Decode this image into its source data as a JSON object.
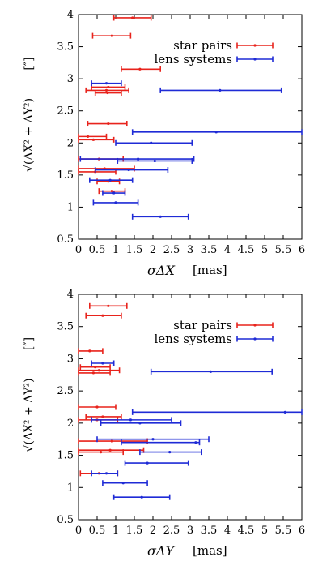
{
  "colors": {
    "star_pairs": "#e8231c",
    "lens_systems": "#1f2bd6",
    "axis": "#000000"
  },
  "chart_data": [
    {
      "type": "scatter",
      "error_bars": "horizontal",
      "x_tick_labels": [
        "0",
        "0.5",
        "1",
        "1.5",
        "2",
        "2.5",
        "3",
        "3.5",
        "4",
        "4.5",
        "5",
        "5.5",
        "6"
      ],
      "y_tick_labels": [
        "0.5",
        "1",
        "1.5",
        "2",
        "2.5",
        "3",
        "3.5",
        "4"
      ],
      "xlim": [
        0,
        6
      ],
      "ylim": [
        0.5,
        4
      ],
      "xlabel_symbol": "σΔX",
      "xlabel_unit": "[mas]",
      "ylabel_expr": "√(ΔX² + ΔY²)",
      "ylabel_unit": "[″]",
      "legend_position": "top-right",
      "series": [
        {
          "name": "star pairs",
          "color": "#e8231c",
          "points": [
            {
              "y": 3.95,
              "x": 1.45,
              "xlo": 0.95,
              "xhi": 1.95
            },
            {
              "y": 3.67,
              "x": 0.9,
              "xlo": 0.38,
              "xhi": 1.4
            },
            {
              "y": 3.15,
              "x": 1.65,
              "xlo": 1.15,
              "xhi": 2.2
            },
            {
              "y": 2.87,
              "x": 0.8,
              "xlo": 0.35,
              "xhi": 1.25
            },
            {
              "y": 2.82,
              "x": 0.75,
              "xlo": 0.2,
              "xhi": 1.35
            },
            {
              "y": 2.78,
              "x": 0.78,
              "xlo": 0.45,
              "xhi": 1.15
            },
            {
              "y": 2.3,
              "x": 0.8,
              "xlo": 0.25,
              "xhi": 1.3
            },
            {
              "y": 2.1,
              "x": 0.25,
              "xlo": 0.0,
              "xhi": 0.75
            },
            {
              "y": 2.05,
              "x": 0.4,
              "xlo": 0.0,
              "xhi": 0.95
            },
            {
              "y": 1.75,
              "x": 0.55,
              "xlo": 0.0,
              "xhi": 1.2
            },
            {
              "y": 1.6,
              "x": 0.7,
              "xlo": 0.0,
              "xhi": 1.5
            },
            {
              "y": 1.55,
              "x": 0.45,
              "xlo": 0.0,
              "xhi": 1.0
            },
            {
              "y": 1.4,
              "x": 0.8,
              "xlo": 0.5,
              "xhi": 1.1
            },
            {
              "y": 1.25,
              "x": 0.9,
              "xlo": 0.55,
              "xhi": 1.25
            }
          ]
        },
        {
          "name": "lens systems",
          "color": "#1f2bd6",
          "points": [
            {
              "y": 2.93,
              "x": 0.75,
              "xlo": 0.35,
              "xhi": 1.15
            },
            {
              "y": 2.82,
              "x": 3.8,
              "xlo": 2.2,
              "xhi": 5.45
            },
            {
              "y": 2.17,
              "x": 3.7,
              "xlo": 1.45,
              "xhi": 6.0
            },
            {
              "y": 2.0,
              "x": 1.95,
              "xlo": 1.0,
              "xhi": 3.05
            },
            {
              "y": 1.75,
              "x": 1.6,
              "xlo": 0.05,
              "xhi": 3.1
            },
            {
              "y": 1.72,
              "x": 2.05,
              "xlo": 1.05,
              "xhi": 3.05
            },
            {
              "y": 1.58,
              "x": 1.35,
              "xlo": 0.45,
              "xhi": 2.4
            },
            {
              "y": 1.42,
              "x": 0.85,
              "xlo": 0.3,
              "xhi": 1.45
            },
            {
              "y": 1.22,
              "x": 0.95,
              "xlo": 0.65,
              "xhi": 1.25
            },
            {
              "y": 1.07,
              "x": 1.0,
              "xlo": 0.4,
              "xhi": 1.6
            },
            {
              "y": 0.85,
              "x": 2.2,
              "xlo": 1.45,
              "xhi": 2.95
            }
          ]
        }
      ]
    },
    {
      "type": "scatter",
      "error_bars": "horizontal",
      "x_tick_labels": [
        "0",
        "0.5",
        "1",
        "1.5",
        "2",
        "2.5",
        "3",
        "3.5",
        "4",
        "4.5",
        "5",
        "5.5",
        "6"
      ],
      "y_tick_labels": [
        "0.5",
        "1",
        "1.5",
        "2",
        "2.5",
        "3",
        "3.5",
        "4"
      ],
      "xlim": [
        0,
        6
      ],
      "ylim": [
        0.5,
        4
      ],
      "xlabel_symbol": "σΔY",
      "xlabel_unit": "[mas]",
      "ylabel_expr": "√(ΔX² + ΔY²)",
      "ylabel_unit": "[″]",
      "legend_position": "top-right",
      "series": [
        {
          "name": "star pairs",
          "color": "#e8231c",
          "points": [
            {
              "y": 3.82,
              "x": 0.8,
              "xlo": 0.3,
              "xhi": 1.3
            },
            {
              "y": 3.67,
              "x": 0.65,
              "xlo": 0.2,
              "xhi": 1.15
            },
            {
              "y": 3.12,
              "x": 0.3,
              "xlo": 0.0,
              "xhi": 0.65
            },
            {
              "y": 2.87,
              "x": 0.45,
              "xlo": 0.05,
              "xhi": 0.85
            },
            {
              "y": 2.82,
              "x": 0.55,
              "xlo": 0.0,
              "xhi": 1.1
            },
            {
              "y": 2.78,
              "x": 0.4,
              "xlo": 0.0,
              "xhi": 0.85
            },
            {
              "y": 2.25,
              "x": 0.5,
              "xlo": 0.0,
              "xhi": 1.0
            },
            {
              "y": 2.1,
              "x": 0.65,
              "xlo": 0.2,
              "xhi": 1.15
            },
            {
              "y": 2.05,
              "x": 0.5,
              "xlo": 0.0,
              "xhi": 1.05
            },
            {
              "y": 1.72,
              "x": 0.9,
              "xlo": 0.0,
              "xhi": 1.85
            },
            {
              "y": 1.58,
              "x": 0.85,
              "xlo": 0.0,
              "xhi": 1.75
            },
            {
              "y": 1.55,
              "x": 0.6,
              "xlo": 0.0,
              "xhi": 1.2
            },
            {
              "y": 1.22,
              "x": 0.55,
              "xlo": 0.05,
              "xhi": 1.05
            }
          ]
        },
        {
          "name": "lens systems",
          "color": "#1f2bd6",
          "points": [
            {
              "y": 2.93,
              "x": 0.65,
              "xlo": 0.35,
              "xhi": 0.95
            },
            {
              "y": 2.8,
              "x": 3.55,
              "xlo": 1.95,
              "xhi": 5.2
            },
            {
              "y": 2.17,
              "x": 5.55,
              "xlo": 1.45,
              "xhi": 6.0
            },
            {
              "y": 2.05,
              "x": 1.4,
              "xlo": 0.35,
              "xhi": 2.5
            },
            {
              "y": 2.0,
              "x": 1.65,
              "xlo": 0.6,
              "xhi": 2.75
            },
            {
              "y": 1.75,
              "x": 2.0,
              "xlo": 0.5,
              "xhi": 3.5
            },
            {
              "y": 1.7,
              "x": 3.15,
              "xlo": 1.15,
              "xhi": 3.25
            },
            {
              "y": 1.55,
              "x": 2.45,
              "xlo": 1.65,
              "xhi": 3.3
            },
            {
              "y": 1.38,
              "x": 1.85,
              "xlo": 1.25,
              "xhi": 2.95
            },
            {
              "y": 1.22,
              "x": 0.75,
              "xlo": 0.35,
              "xhi": 1.05
            },
            {
              "y": 1.07,
              "x": 1.2,
              "xlo": 0.65,
              "xhi": 1.85
            },
            {
              "y": 0.85,
              "x": 1.7,
              "xlo": 0.95,
              "xhi": 2.45
            }
          ]
        }
      ]
    }
  ]
}
